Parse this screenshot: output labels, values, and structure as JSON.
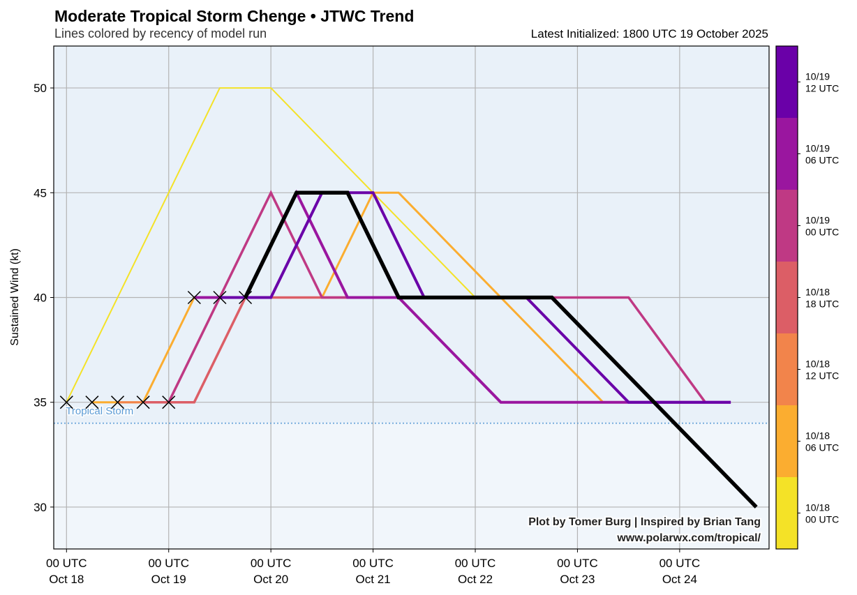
{
  "chart_data": {
    "type": "line",
    "title": "Moderate Tropical Storm Chenge • JTWC Trend",
    "subtitle": "Lines colored by recency of model run",
    "init_label": "Latest Initialized: 1800 UTC 19 October 2025",
    "ylabel": "Sustained Wind (kt)",
    "xlabel": "",
    "x_units": "hours since 00 UTC Oct 18",
    "xlim": [
      -3,
      165
    ],
    "ylim": [
      28,
      52
    ],
    "grid": true,
    "yticks": [
      30,
      35,
      40,
      45,
      50
    ],
    "xticks": [
      {
        "x": 0,
        "line1": "00 UTC",
        "line2": "Oct 18"
      },
      {
        "x": 24,
        "line1": "00 UTC",
        "line2": "Oct 19"
      },
      {
        "x": 48,
        "line1": "00 UTC",
        "line2": "Oct 20"
      },
      {
        "x": 72,
        "line1": "00 UTC",
        "line2": "Oct 21"
      },
      {
        "x": 96,
        "line1": "00 UTC",
        "line2": "Oct 22"
      },
      {
        "x": 120,
        "line1": "00 UTC",
        "line2": "Oct 23"
      },
      {
        "x": 144,
        "line1": "00 UTC",
        "line2": "Oct 24"
      }
    ],
    "threshold": {
      "value": 34,
      "label": "Tropical Storm",
      "color": "#5b9bd5"
    },
    "series": [
      {
        "name": "10/18 00 UTC",
        "color": "#f4e227",
        "width": 2,
        "points": [
          [
            0,
            35
          ],
          [
            36,
            50
          ],
          [
            48,
            50
          ],
          [
            96,
            40
          ]
        ]
      },
      {
        "name": "10/18 06 UTC",
        "color": "#fbad30",
        "width": 3,
        "points": [
          [
            6,
            35
          ],
          [
            18,
            35
          ],
          [
            30,
            40
          ],
          [
            60,
            40
          ],
          [
            72,
            45
          ],
          [
            78,
            45
          ],
          [
            126,
            35
          ]
        ]
      },
      {
        "name": "10/18 12 UTC",
        "color": "#f2844b",
        "width": 3,
        "points": [
          [
            12,
            35
          ],
          [
            24,
            35
          ],
          [
            36,
            40
          ],
          [
            60,
            40
          ]
        ]
      },
      {
        "name": "10/18 18 UTC",
        "color": "#dc5e66",
        "width": 3.5,
        "points": [
          [
            18,
            35
          ],
          [
            30,
            35
          ],
          [
            42,
            40
          ],
          [
            66,
            40
          ]
        ]
      },
      {
        "name": "10/19 00 UTC",
        "color": "#bf3984",
        "width": 3.5,
        "points": [
          [
            24,
            35
          ],
          [
            36,
            40
          ],
          [
            48,
            45
          ],
          [
            60,
            40
          ],
          [
            132,
            40
          ],
          [
            150,
            35
          ]
        ]
      },
      {
        "name": "10/19 06 UTC",
        "color": "#9a169f",
        "width": 4,
        "points": [
          [
            30,
            40
          ],
          [
            42,
            40
          ],
          [
            54,
            45
          ],
          [
            66,
            40
          ],
          [
            78,
            40
          ],
          [
            102,
            35
          ],
          [
            156,
            35
          ]
        ]
      },
      {
        "name": "10/19 12 UTC",
        "color": "#6a00a8",
        "width": 4,
        "points": [
          [
            36,
            40
          ],
          [
            48,
            40
          ],
          [
            60,
            45
          ],
          [
            72,
            45
          ],
          [
            84,
            40
          ],
          [
            108,
            40
          ],
          [
            132,
            35
          ],
          [
            156,
            35
          ]
        ]
      },
      {
        "name": "10/19 18 UTC",
        "color": "#000000",
        "width": 5.5,
        "points": [
          [
            42,
            40
          ],
          [
            54,
            45
          ],
          [
            66,
            45
          ],
          [
            78,
            40
          ],
          [
            114,
            40
          ],
          [
            162,
            30
          ]
        ]
      }
    ],
    "colorbar": [
      {
        "line1": "10/19",
        "line2": "12 UTC",
        "color": "#6a00a8"
      },
      {
        "line1": "10/19",
        "line2": "06 UTC",
        "color": "#9a169f"
      },
      {
        "line1": "10/19",
        "line2": "00 UTC",
        "color": "#bf3984"
      },
      {
        "line1": "10/18",
        "line2": "18 UTC",
        "color": "#dc5e66"
      },
      {
        "line1": "10/18",
        "line2": "12 UTC",
        "color": "#f2844b"
      },
      {
        "line1": "10/18",
        "line2": "06 UTC",
        "color": "#fbad30"
      },
      {
        "line1": "10/18",
        "line2": "00 UTC",
        "color": "#f4e227"
      }
    ],
    "credit": [
      "Plot by Tomer Burg | Inspired by Brian Tang",
      "www.polarwx.com/tropical/"
    ]
  }
}
